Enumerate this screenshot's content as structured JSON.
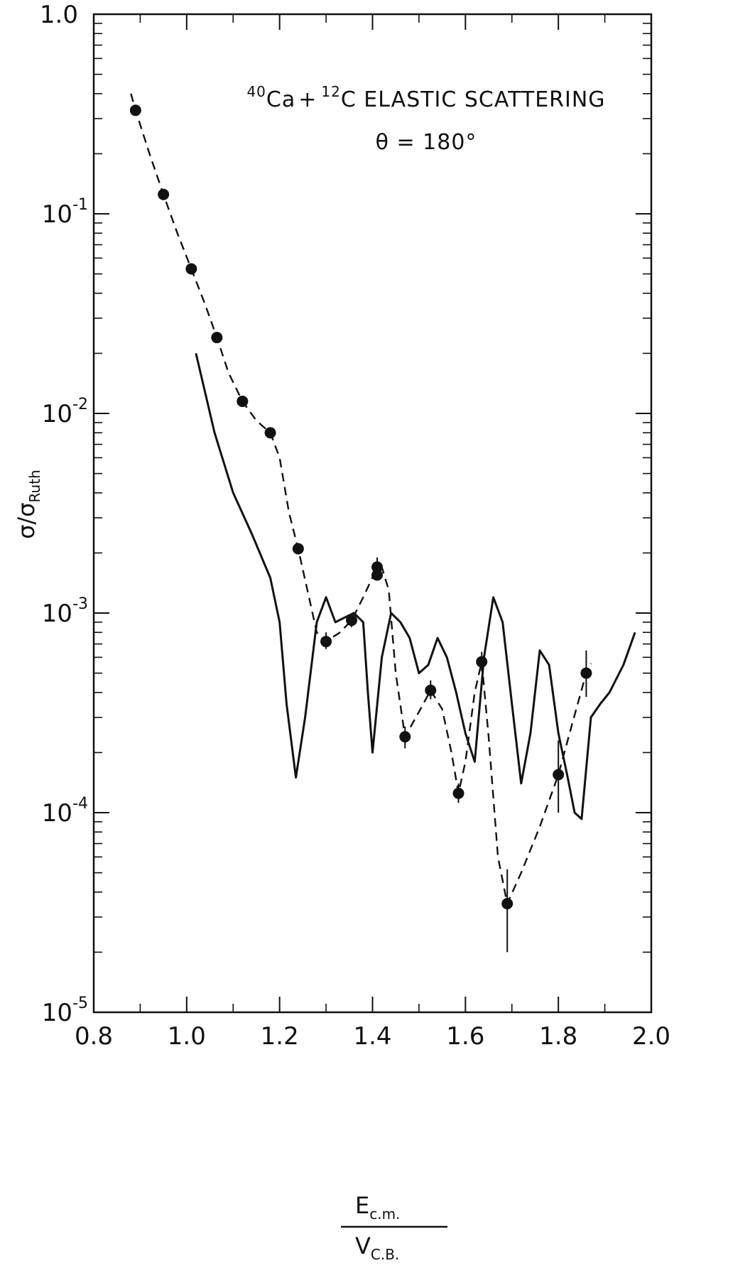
{
  "chart_data": {
    "type": "scatter",
    "title_lines": {
      "line1_sup_a": "40",
      "line1_a": "Ca",
      "line1_plus": "+",
      "line1_sup_b": "12",
      "line1_b": "C  ELASTIC  SCATTERING",
      "line2": "θ = 180°"
    },
    "xlabel": {
      "numerator_main": "E",
      "numerator_sub": "c.m.",
      "denominator_main": "V",
      "denominator_sub": "C.B."
    },
    "ylabel": {
      "main": "σ/σ",
      "sub": "Ruth"
    },
    "x_ticks": [
      "0.8",
      "1.0",
      "1.2",
      "1.4",
      "1.6",
      "1.8",
      "2.0"
    ],
    "x_tick_values": [
      0.8,
      1.0,
      1.2,
      1.4,
      1.6,
      1.8,
      2.0
    ],
    "y_ticks": [
      {
        "base": "1.0",
        "exp": ""
      },
      {
        "base": "10",
        "exp": "-1"
      },
      {
        "base": "10",
        "exp": "-2"
      },
      {
        "base": "10",
        "exp": "-3"
      },
      {
        "base": "10",
        "exp": "-4"
      },
      {
        "base": "10",
        "exp": "-5"
      }
    ],
    "y_tick_values": [
      1.0,
      0.1,
      0.01,
      0.001,
      0.0001,
      1e-05
    ],
    "xlim": [
      0.8,
      2.0
    ],
    "ylim": [
      1e-05,
      1.0
    ],
    "yscale": "log",
    "grid": false,
    "series": [
      {
        "style": "markers-with-error-bars",
        "color": "#111111",
        "points": [
          {
            "x": 0.89,
            "y": 0.33
          },
          {
            "x": 0.95,
            "y": 0.125
          },
          {
            "x": 1.01,
            "y": 0.053
          },
          {
            "x": 1.065,
            "y": 0.024
          },
          {
            "x": 1.12,
            "y": 0.0115
          },
          {
            "x": 1.18,
            "y": 0.008
          },
          {
            "x": 1.24,
            "y": 0.0021
          },
          {
            "x": 1.3,
            "y": 0.00072,
            "ylo": 0.00066,
            "yhi": 0.0008
          },
          {
            "x": 1.355,
            "y": 0.00092,
            "ylo": 0.00085,
            "yhi": 0.00099
          },
          {
            "x": 1.41,
            "y": 0.0017,
            "ylo": 0.0015,
            "yhi": 0.0019
          },
          {
            "x": 1.41,
            "y": 0.00155
          },
          {
            "x": 1.47,
            "y": 0.00024,
            "ylo": 0.00021,
            "yhi": 0.00027
          },
          {
            "x": 1.525,
            "y": 0.00041,
            "ylo": 0.00037,
            "yhi": 0.00046
          },
          {
            "x": 1.585,
            "y": 0.000125,
            "ylo": 0.000112,
            "yhi": 0.00014
          },
          {
            "x": 1.635,
            "y": 0.00057,
            "ylo": 0.00051,
            "yhi": 0.00064
          },
          {
            "x": 1.69,
            "y": 3.5e-05,
            "ylo": 2e-05,
            "yhi": 5.2e-05
          },
          {
            "x": 1.8,
            "y": 0.000155,
            "ylo": 0.0001,
            "yhi": 0.00023
          },
          {
            "x": 1.86,
            "y": 0.0005,
            "ylo": 0.00038,
            "yhi": 0.00065
          }
        ]
      },
      {
        "style": "dashed",
        "color": "#111111",
        "x": [
          0.88,
          0.89,
          0.92,
          0.95,
          0.98,
          1.01,
          1.04,
          1.065,
          1.09,
          1.12,
          1.15,
          1.18,
          1.2,
          1.22,
          1.24,
          1.26,
          1.28,
          1.3,
          1.33,
          1.355,
          1.38,
          1.405,
          1.42,
          1.435,
          1.45,
          1.47,
          1.5,
          1.525,
          1.55,
          1.57,
          1.585,
          1.6,
          1.62,
          1.635,
          1.65,
          1.67,
          1.69,
          1.72,
          1.76,
          1.8,
          1.83,
          1.86,
          1.87
        ],
        "y": [
          0.4,
          0.33,
          0.2,
          0.125,
          0.08,
          0.053,
          0.035,
          0.024,
          0.016,
          0.0115,
          0.0092,
          0.008,
          0.006,
          0.0032,
          0.0021,
          0.0013,
          0.0008,
          0.00072,
          0.0008,
          0.00092,
          0.0012,
          0.0016,
          0.0017,
          0.0013,
          0.0005,
          0.00024,
          0.00032,
          0.00041,
          0.00033,
          0.0002,
          0.000125,
          0.00018,
          0.0004,
          0.00057,
          0.00024,
          6e-05,
          3.5e-05,
          5e-05,
          8.5e-05,
          0.000155,
          0.00028,
          0.0005,
          0.00056
        ]
      },
      {
        "style": "solid",
        "color": "#111111",
        "x": [
          1.02,
          1.06,
          1.1,
          1.14,
          1.18,
          1.2,
          1.215,
          1.235,
          1.255,
          1.28,
          1.3,
          1.32,
          1.34,
          1.36,
          1.38,
          1.39,
          1.4,
          1.42,
          1.44,
          1.46,
          1.48,
          1.5,
          1.52,
          1.54,
          1.56,
          1.58,
          1.6,
          1.62,
          1.64,
          1.66,
          1.68,
          1.7,
          1.72,
          1.74,
          1.76,
          1.78,
          1.8,
          1.82,
          1.835,
          1.85,
          1.87,
          1.89,
          1.91,
          1.94,
          1.965
        ],
        "y": [
          0.02,
          0.008,
          0.004,
          0.0025,
          0.0015,
          0.0009,
          0.00035,
          0.00015,
          0.0003,
          0.0009,
          0.0012,
          0.0009,
          0.00095,
          0.001,
          0.0009,
          0.0004,
          0.0002,
          0.0006,
          0.001,
          0.0009,
          0.00075,
          0.0005,
          0.00055,
          0.00075,
          0.0006,
          0.0004,
          0.00025,
          0.00018,
          0.0006,
          0.0012,
          0.0009,
          0.00035,
          0.00014,
          0.00025,
          0.00065,
          0.00055,
          0.00025,
          0.00015,
          0.0001,
          9.3e-05,
          0.0003,
          0.00035,
          0.0004,
          0.00055,
          0.0008
        ]
      }
    ]
  }
}
